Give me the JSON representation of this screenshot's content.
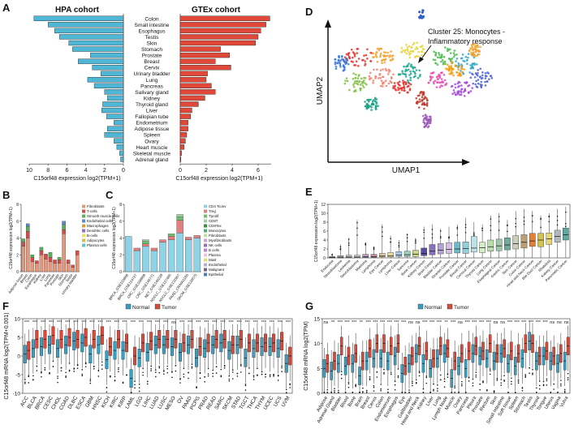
{
  "panels": {
    "A": "A",
    "B": "B",
    "C": "C",
    "D": "D",
    "E": "E",
    "F": "F",
    "G": "G"
  },
  "colors": {
    "hpa": "#4fb6d6",
    "gtex": "#e0493a",
    "normal": "#3c9fc0",
    "tumor": "#d64b3b"
  },
  "chart_data": [
    {
      "id": "A",
      "type": "bar",
      "orientation": "horizontal",
      "titles": {
        "left": "HPA cohort",
        "right": "GTEx cohort"
      },
      "xlabel": "C15orf48 expression log2(TPM+1)",
      "categories": [
        "Colon",
        "Small intestine",
        "Esophagus",
        "Testis",
        "Skin",
        "Stomach",
        "Prostate",
        "Breast",
        "Cervix",
        "Urinary bladder",
        "Lung",
        "Pancreas",
        "Salivary gland",
        "Kidney",
        "Thyroid gland",
        "Liver",
        "Fallopian tube",
        "Endometrium",
        "Adipose tissue",
        "Spleen",
        "Ovary",
        "Heart muscle",
        "Skeletal muscle",
        "Adrenal gland"
      ],
      "series": [
        {
          "name": "HPA cohort",
          "values": [
            9.5,
            8.0,
            7.3,
            6.8,
            5.8,
            5.4,
            3.5,
            4.8,
            3.3,
            2.4,
            3.8,
            3.1,
            2.0,
            1.7,
            2.2,
            2.3,
            1.8,
            1.0,
            1.7,
            2.0,
            1.0,
            0.7,
            0.4,
            0.3
          ],
          "xlim": [
            10,
            0
          ],
          "ticks": [
            "10",
            "8",
            "6",
            "4",
            "2",
            "0"
          ]
        },
        {
          "name": "GTEx cohort",
          "values": [
            6.9,
            6.6,
            6.2,
            6.0,
            5.8,
            3.1,
            3.8,
            2.7,
            3.9,
            2.1,
            2.0,
            2.4,
            2.7,
            1.9,
            1.4,
            0.9,
            0.8,
            0.6,
            0.6,
            0.5,
            0.4,
            0.3,
            0.1,
            0.05
          ],
          "xlim": [
            0,
            7
          ],
          "ticks": [
            "0",
            "2",
            "4",
            "6"
          ]
        }
      ]
    },
    {
      "id": "B",
      "type": "bar",
      "stacked": true,
      "ylabel": "C15orf48 expression log2(TPM+1)",
      "categories": [
        "Adipose tissue",
        "Breast",
        "Colon",
        "Esophagus",
        "Kidney",
        "Liver",
        "Lung",
        "Pancreas",
        "Prostate",
        "Skin",
        "Stomach",
        "Testis",
        "Urinary bladder"
      ],
      "ylim": [
        0,
        8
      ],
      "yticks": [
        "0",
        "2",
        "4",
        "6",
        "8"
      ],
      "legend": [
        "Fibroblasts",
        "T-cells",
        "Smooth muscle cells",
        "Endothelial cells",
        "Macrophages",
        "Dendritic cells",
        "B-cells",
        "Adipocytes",
        "Plasma cells"
      ],
      "segment_colors": [
        "#e8967a",
        "#d94a4a",
        "#5ab05a",
        "#5a8ad6",
        "#e0a030",
        "#9a6cc4",
        "#f0e060",
        "#c8c050",
        "#60c8c0"
      ],
      "stacks": [
        [
          3.0,
          0.5,
          0.4
        ],
        [
          4.0,
          0.8,
          0.6,
          0.3
        ],
        [
          1.2,
          0.5,
          0.3
        ],
        [
          1.0,
          0.3
        ],
        [
          2.0,
          0.5,
          0.4
        ],
        [
          1.5,
          0.6
        ],
        [
          1.2,
          0.5,
          0.6
        ],
        [
          1.0,
          0.4
        ],
        [
          1.0,
          0.4,
          0.3
        ],
        [
          4.5,
          0.5,
          0.6,
          0.4
        ],
        [
          1.0,
          0.4
        ],
        [
          0.5,
          0.3
        ],
        [
          2.0,
          0.5
        ]
      ]
    },
    {
      "id": "C",
      "type": "bar",
      "stacked": true,
      "ylabel": "C15orf48 expression log2(TPM+1)",
      "categories": [
        "BRCA_GSE110686",
        "BRCA_GSE114727",
        "CRC_GSE108989",
        "CRC_GSE146771",
        "NET_GSE140228",
        "NSCLC_GSE127465",
        "NSCLC_GSE131907",
        "PAAD_CRA001160",
        "SKCM_GSE120575"
      ],
      "ylim": [
        0,
        8
      ],
      "yticks": [
        "0",
        "2",
        "4",
        "6",
        "8"
      ],
      "legend": [
        "CD4 Tconv",
        "Treg",
        "Tprolif",
        "CD8T",
        "CD8Tex",
        "Monocytes",
        "Fibroblasts",
        "Myofibroblasts",
        "NK cells",
        "B cells",
        "Plasma",
        "Mast",
        "Endothelial",
        "Malignant",
        "Epithelial"
      ],
      "segment_colors": [
        "#8fd3e8",
        "#e08080",
        "#70c070",
        "#a0d0a0",
        "#3c8c3c",
        "#50b070",
        "#c0e0a0",
        "#d0a0d0",
        "#9070c0",
        "#c080e0",
        "#f0c0e0",
        "#e0e070",
        "#b0b0d0",
        "#706090",
        "#4a7fb5"
      ],
      "stacks": [
        [
          4.2
        ],
        [
          2.5,
          0.3
        ],
        [
          3.0,
          0.3,
          0.3,
          0.2
        ],
        [
          2.5,
          0.3
        ],
        [
          3.5,
          0.3
        ],
        [
          3.8,
          0.4,
          0.3
        ],
        [
          4.6,
          1.5,
          0.4,
          0.3
        ],
        [
          3.8,
          0.3
        ],
        [
          4.0,
          0.3
        ]
      ]
    },
    {
      "id": "D",
      "type": "scatter",
      "xlabel": "UMAP1",
      "ylabel": "UMAP2",
      "annotation": "Cluster 25: Monocytes - Inflammatory response"
    },
    {
      "id": "E",
      "type": "box",
      "ylabel": "C15orf48 expression log2(TPM+1)",
      "ylim": [
        0,
        12
      ],
      "yticks": [
        "0",
        "2",
        "4",
        "6",
        "8",
        "10",
        "12"
      ],
      "categories": [
        "Endocrine",
        "Neuroblastoma",
        "Leukemia",
        "Neuroblastoma",
        "Myeloma",
        "Lymphoma",
        "Eye Cancer",
        "Lymphoma",
        "Liver Cancer",
        "Sarcoma",
        "Bone Cancer",
        "Kidney Cancer",
        "Brain Cancer",
        "Bladder Cancer",
        "Ovarian Cancer",
        "Prostate Cancer",
        "Breast Cancer",
        "Cervical Cancer",
        "Thyroid Cancer",
        "Lung Cancer",
        "Esophageal Cancer",
        "Gastric Cancer",
        "Skin Cancer",
        "Colon Cancer",
        "Head and Neck Cancer",
        "Bile Duct Cancer",
        "Rhabdoid",
        "Kidney Cancer",
        "Pancreatic Cancer"
      ],
      "medians": [
        0.1,
        0.15,
        0.2,
        0.2,
        0.3,
        0.3,
        0.4,
        0.5,
        0.6,
        0.7,
        0.8,
        1.0,
        1.5,
        1.7,
        1.9,
        2.0,
        2.1,
        2.2,
        2.3,
        2.5,
        2.7,
        2.9,
        3.2,
        3.5,
        3.8,
        4.0,
        4.3,
        4.8,
        5.2
      ],
      "q1": [
        0.0,
        0.0,
        0.05,
        0.05,
        0.1,
        0.1,
        0.2,
        0.2,
        0.3,
        0.3,
        0.3,
        0.5,
        0.7,
        0.9,
        1.0,
        1.1,
        1.0,
        1.3,
        1.2,
        1.5,
        1.6,
        1.8,
        2.0,
        2.2,
        2.6,
        2.5,
        3.0,
        3.5,
        4.0
      ],
      "q3": [
        0.3,
        0.5,
        0.6,
        0.6,
        0.8,
        0.8,
        1.0,
        1.2,
        1.4,
        1.5,
        1.7,
        2.2,
        3.0,
        3.2,
        3.4,
        3.5,
        3.6,
        4.8,
        3.5,
        4.0,
        4.2,
        4.5,
        5.0,
        5.2,
        5.5,
        5.5,
        5.6,
        6.2,
        6.7
      ],
      "max": [
        1.0,
        3.0,
        4.5,
        8.5,
        3.5,
        2.5,
        7.5,
        5.0,
        4.0,
        5.5,
        4.5,
        7.0,
        7.5,
        6.5,
        7.0,
        7.5,
        9.0,
        8.0,
        7.5,
        9.5,
        10.0,
        8.5,
        10.5,
        11.0,
        10.5,
        9.5,
        10.0,
        11.0,
        11.5
      ]
    },
    {
      "id": "F",
      "type": "box",
      "ylabel": "C15orf48 mRNA log2(TPM+0.001)",
      "legend": [
        "Normal",
        "Tumor"
      ],
      "ylim": [
        -10,
        10
      ],
      "yticks": [
        "-10",
        "-5",
        "0",
        "5",
        "10"
      ],
      "categories": [
        "ACC",
        "BLCA",
        "BRCA",
        "CESC",
        "CHOL",
        "COAD",
        "DLBC",
        "ESCA",
        "GBM",
        "HNSC",
        "KICH",
        "KIRC",
        "KIRP",
        "LAML",
        "LGG",
        "LIHC",
        "LUAD",
        "LUSC",
        "MESO",
        "OV",
        "PAAD",
        "PCPG",
        "PRAD",
        "READ",
        "SARC",
        "SKCM",
        "STAD",
        "TGCT",
        "THCA",
        "THYM",
        "UCEC",
        "UCS",
        "UVM"
      ],
      "significance": [
        "***",
        "***",
        "***",
        "***",
        "***",
        "***",
        "***",
        "***",
        "***",
        "***",
        "***",
        "***",
        "***",
        "***",
        "***",
        "***",
        "***",
        "***",
        "ns",
        "***",
        "***",
        "***",
        "***",
        "***",
        "***",
        "***",
        "***",
        "***",
        "***",
        "***",
        "***",
        "***",
        "***"
      ],
      "normal_median": [
        0.5,
        2.0,
        2.5,
        3.0,
        2.0,
        3.0,
        4.0,
        3.5,
        0.5,
        3.0,
        -1.0,
        1.5,
        1.5,
        -6.0,
        -0.5,
        1.0,
        3.0,
        3.0,
        2.5,
        1.0,
        3.0,
        -0.5,
        2.0,
        3.0,
        3.5,
        1.5,
        3.0,
        -0.5,
        2.0,
        2.5,
        2.5,
        2.0,
        -2.0
      ],
      "tumor_median": [
        1.5,
        4.5,
        4.5,
        5.5,
        4.5,
        5.0,
        4.5,
        5.0,
        4.5,
        5.5,
        2.5,
        4.5,
        3.5,
        0.0,
        3.5,
        4.0,
        4.5,
        4.5,
        4.5,
        3.5,
        4.5,
        2.5,
        3.5,
        4.5,
        4.5,
        3.0,
        4.5,
        3.5,
        3.5,
        3.5,
        3.5,
        4.0,
        0.0
      ]
    },
    {
      "id": "G",
      "type": "box",
      "ylabel": "C15orf48 mRNA log2(TPM)",
      "legend": [
        "Normal",
        "Tumor"
      ],
      "ylim": [
        0,
        15
      ],
      "yticks": [
        "0",
        "5",
        "10",
        "15"
      ],
      "categories": [
        "Adipose",
        "Adrenal Gland",
        "Bladder",
        "Blood",
        "Bone",
        "Brain",
        "Breast",
        "Cervix",
        "Colon",
        "Endometrium",
        "Esophagus",
        "Eye",
        "Gallbladder",
        "Head and Neck",
        "Kidney",
        "Liver",
        "Lung",
        "Lymph Node",
        "Muscle",
        "Ovary",
        "Pancreas",
        "Pleura",
        "Prostate",
        "Rectum",
        "Skin",
        "Small Intestine",
        "Soft tissue",
        "Spleen",
        "Stomach",
        "Testis",
        "Thyroid",
        "Tongue",
        "Uterus",
        "Vagina",
        "Vulva"
      ],
      "significance": [
        "ns",
        "**",
        "***",
        "***",
        "***",
        "**",
        "***",
        "***",
        "***",
        "***",
        "***",
        "***",
        "ns",
        "ns",
        "***",
        "***",
        "***",
        "**",
        "***",
        "ns",
        "***",
        "***",
        "***",
        "***",
        "ns",
        "ns",
        "***",
        "***",
        "***",
        "***",
        "***",
        "***",
        "ns",
        "ns",
        "ns"
      ],
      "normal_median": [
        5.0,
        4.5,
        6.0,
        5.5,
        6.0,
        3.5,
        6.5,
        7.0,
        7.0,
        6.5,
        7.5,
        4.0,
        6.0,
        8.0,
        6.0,
        5.0,
        7.0,
        8.0,
        3.0,
        5.5,
        5.0,
        8.0,
        7.5,
        7.0,
        6.5,
        8.0,
        6.0,
        5.5,
        7.0,
        10.5,
        6.5,
        7.5,
        6.5,
        6.0,
        6.5
      ],
      "tumor_median": [
        6.0,
        6.5,
        9.5,
        7.5,
        8.0,
        6.5,
        9.0,
        10.0,
        10.0,
        9.5,
        10.0,
        5.5,
        7.5,
        9.5,
        8.5,
        7.0,
        9.5,
        9.0,
        6.5,
        8.0,
        8.5,
        9.5,
        8.5,
        10.0,
        8.0,
        9.0,
        8.5,
        8.0,
        10.0,
        10.0,
        7.5,
        8.5,
        7.5,
        8.0,
        9.5
      ]
    }
  ]
}
